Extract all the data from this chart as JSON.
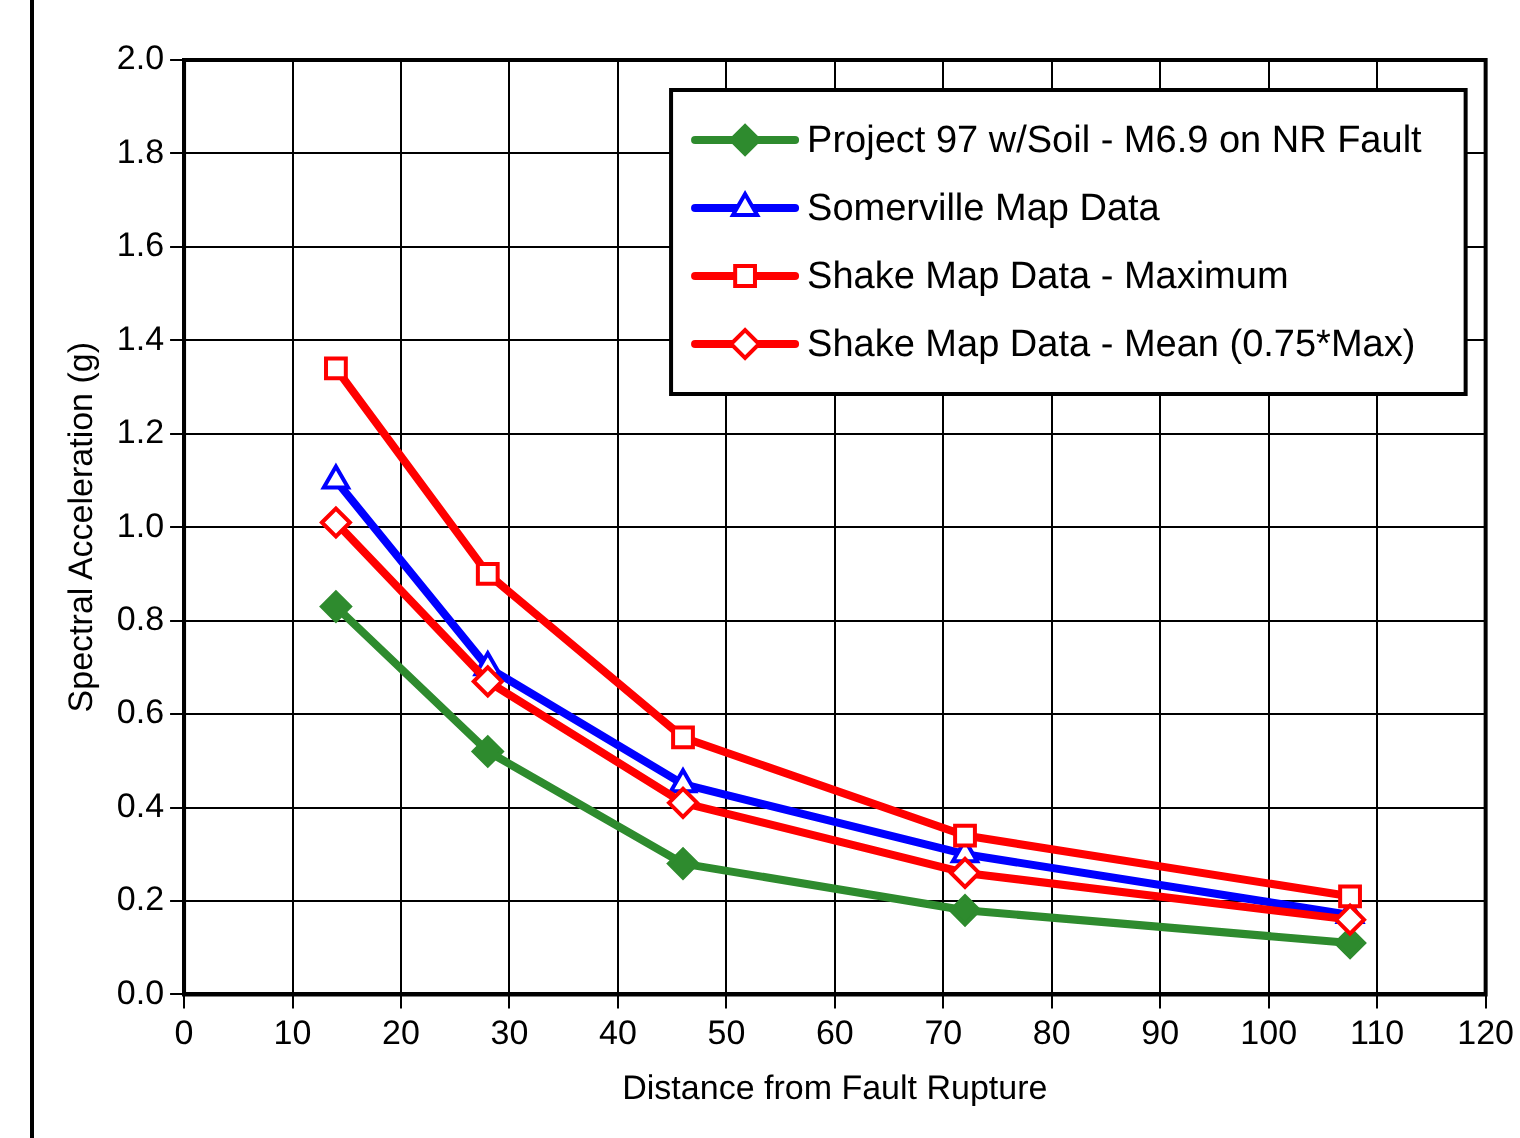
{
  "chart_data": {
    "type": "line",
    "xlabel": "Distance from Fault Rupture",
    "ylabel": "Spectral Acceleration (g)",
    "x": [
      14,
      28,
      46,
      72,
      107.5
    ],
    "xlim": [
      0,
      120
    ],
    "xticks": [
      0,
      10,
      20,
      30,
      40,
      50,
      60,
      70,
      80,
      90,
      100,
      110,
      120
    ],
    "ylim": [
      0,
      2
    ],
    "yticks": [
      {
        "value": 0,
        "label": "0.0"
      },
      {
        "value": 0.2,
        "label": "0.2"
      },
      {
        "value": 0.4,
        "label": "0.4"
      },
      {
        "value": 0.6,
        "label": "0.6"
      },
      {
        "value": 0.8,
        "label": "0.8"
      },
      {
        "value": 1,
        "label": "1.0"
      },
      {
        "value": 1.2,
        "label": "1.2"
      },
      {
        "value": 1.4,
        "label": "1.4"
      },
      {
        "value": 1.6,
        "label": "1.6"
      },
      {
        "value": 1.8,
        "label": "1.8"
      },
      {
        "value": 2,
        "label": "2.0"
      }
    ],
    "grid": true,
    "legend": "top right",
    "series": [
      {
        "name": "Project 97 w/Soil - M6.9 on NR Fault",
        "color": "#2e8b2e",
        "marker": "diamond",
        "values": [
          0.83,
          0.52,
          0.28,
          0.18,
          0.11
        ]
      },
      {
        "name": "Somerville Map Data",
        "color": "#0000ff",
        "marker": "triangle",
        "values": [
          1.1,
          0.7,
          0.45,
          0.3,
          0.17
        ]
      },
      {
        "name": "Shake Map Data - Maximum",
        "color": "#ff0000",
        "marker": "square",
        "values": [
          1.34,
          0.9,
          0.55,
          0.34,
          0.21
        ]
      },
      {
        "name": "Shake Map Data - Mean (0.75*Max)",
        "color": "#ff0000",
        "marker": "diamond",
        "values": [
          1.01,
          0.67,
          0.41,
          0.26,
          0.16
        ]
      }
    ]
  }
}
